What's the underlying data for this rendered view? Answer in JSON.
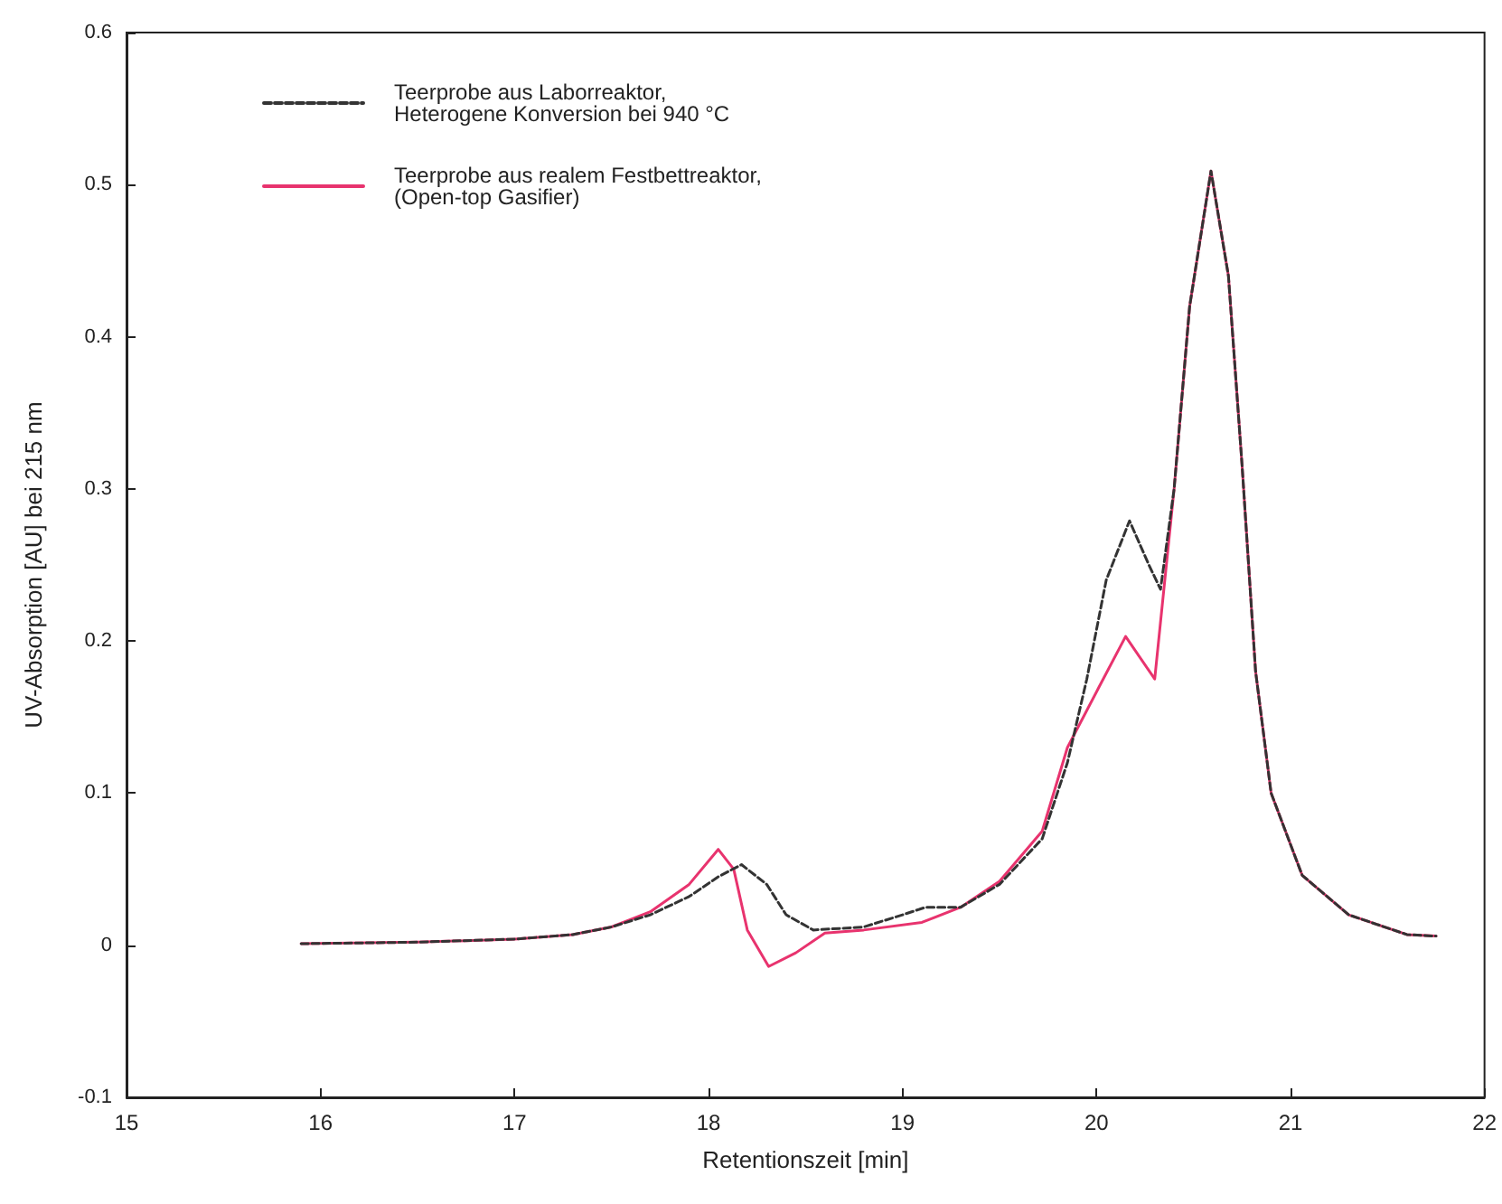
{
  "chart_data": {
    "type": "line",
    "xlabel": "Retentionszeit [min]",
    "ylabel": "UV-Absorption [AU] bei 215 nm",
    "xlim": [
      15,
      22
    ],
    "xticks": [
      15,
      16,
      17,
      18,
      19,
      20,
      21,
      22
    ],
    "ylim": [
      -0.1,
      0.6
    ],
    "yticks": [
      -0.1,
      0,
      0.1,
      0.2,
      0.3,
      0.4,
      0.5,
      0.6
    ],
    "grid": false,
    "legend": "top left",
    "marker": "none",
    "series": [
      {
        "name": "Teerprobe aus Laborreaktor,\nHeterogene Konversion bei 940 °C",
        "color": "#333333",
        "line_style": "dashed",
        "x": [
          15.9,
          16.5,
          17.0,
          17.3,
          17.5,
          17.7,
          17.9,
          18.05,
          18.17,
          18.3,
          18.4,
          18.54,
          18.8,
          19.0,
          19.12,
          19.3,
          19.5,
          19.72,
          19.85,
          19.95,
          20.05,
          20.17,
          20.27,
          20.33,
          20.4,
          20.48,
          20.59,
          20.68,
          20.75,
          20.82,
          20.9,
          21.06,
          21.3,
          21.6,
          21.75
        ],
        "values": [
          0.001,
          0.002,
          0.004,
          0.007,
          0.012,
          0.02,
          0.032,
          0.045,
          0.053,
          0.04,
          0.02,
          0.01,
          0.012,
          0.02,
          0.025,
          0.025,
          0.04,
          0.07,
          0.12,
          0.175,
          0.24,
          0.279,
          0.25,
          0.234,
          0.3,
          0.42,
          0.509,
          0.44,
          0.316,
          0.18,
          0.1,
          0.046,
          0.02,
          0.007,
          0.006
        ]
      },
      {
        "name": "Teerprobe aus realem Festbettreaktor,\n(Open-top Gasifier)",
        "color": "#e8336e",
        "line_style": "solid",
        "x": [
          15.9,
          16.5,
          17.0,
          17.3,
          17.5,
          17.7,
          17.9,
          18.05,
          18.13,
          18.2,
          18.31,
          18.45,
          18.6,
          18.8,
          19.1,
          19.3,
          19.5,
          19.72,
          19.85,
          20.01,
          20.15,
          20.3,
          20.4,
          20.48,
          20.59,
          20.68,
          20.75,
          20.82,
          20.9,
          21.06,
          21.3,
          21.6,
          21.75
        ],
        "values": [
          0.001,
          0.002,
          0.004,
          0.007,
          0.012,
          0.022,
          0.04,
          0.063,
          0.05,
          0.01,
          -0.014,
          -0.005,
          0.008,
          0.01,
          0.015,
          0.025,
          0.042,
          0.075,
          0.13,
          0.169,
          0.203,
          0.175,
          0.3,
          0.42,
          0.509,
          0.44,
          0.316,
          0.18,
          0.1,
          0.046,
          0.02,
          0.007,
          0.006
        ]
      }
    ]
  }
}
